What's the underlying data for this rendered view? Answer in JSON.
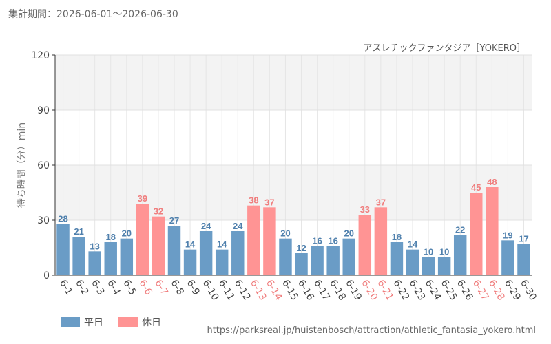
{
  "header": {
    "period": "集計期間：2026-06-01～2026-06-30",
    "attraction": "アスレチックファンタジア［YOKERO］",
    "source": "https://parksreal.jp/huistenbosch/attraction/athletic_fantasia_yokero.html"
  },
  "legend": {
    "weekday_label": "平日",
    "holiday_label": "休日"
  },
  "colors": {
    "weekday": "#6a9cc6",
    "holiday": "#ff9494",
    "weekday_text": "#4f80ad",
    "holiday_text": "#f07e7e"
  },
  "chart_data": {
    "type": "bar",
    "ylabel": "待ち時間（分）min",
    "ylim": [
      0,
      120
    ],
    "yticks": [
      0,
      30,
      60,
      90,
      120
    ],
    "categories": [
      "6-1",
      "6-2",
      "6-3",
      "6-4",
      "6-5",
      "6-6",
      "6-7",
      "6-8",
      "6-9",
      "6-10",
      "6-11",
      "6-12",
      "6-13",
      "6-14",
      "6-15",
      "6-16",
      "6-17",
      "6-18",
      "6-19",
      "6-20",
      "6-21",
      "6-22",
      "6-23",
      "6-24",
      "6-25",
      "6-26",
      "6-27",
      "6-28",
      "6-29",
      "6-30"
    ],
    "values": [
      28,
      21,
      13,
      18,
      20,
      39,
      32,
      27,
      14,
      24,
      14,
      24,
      38,
      37,
      20,
      12,
      16,
      16,
      20,
      33,
      37,
      18,
      14,
      10,
      10,
      22,
      45,
      48,
      19,
      17
    ],
    "holiday": [
      false,
      false,
      false,
      false,
      false,
      true,
      true,
      false,
      false,
      false,
      false,
      false,
      true,
      true,
      false,
      false,
      false,
      false,
      false,
      true,
      true,
      false,
      false,
      false,
      false,
      false,
      true,
      true,
      false,
      false
    ],
    "grid": true,
    "legend_position": "bottom-left"
  }
}
